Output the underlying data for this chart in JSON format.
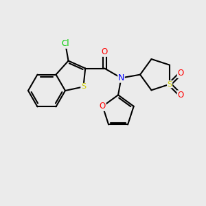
{
  "bg_color": "#ebebeb",
  "atom_colors": {
    "C": "#000000",
    "N": "#0000ff",
    "O": "#ff0000",
    "S": "#cccc00",
    "Cl": "#00cc00"
  },
  "bond_color": "#000000",
  "figsize": [
    3.0,
    3.0
  ],
  "dpi": 100
}
